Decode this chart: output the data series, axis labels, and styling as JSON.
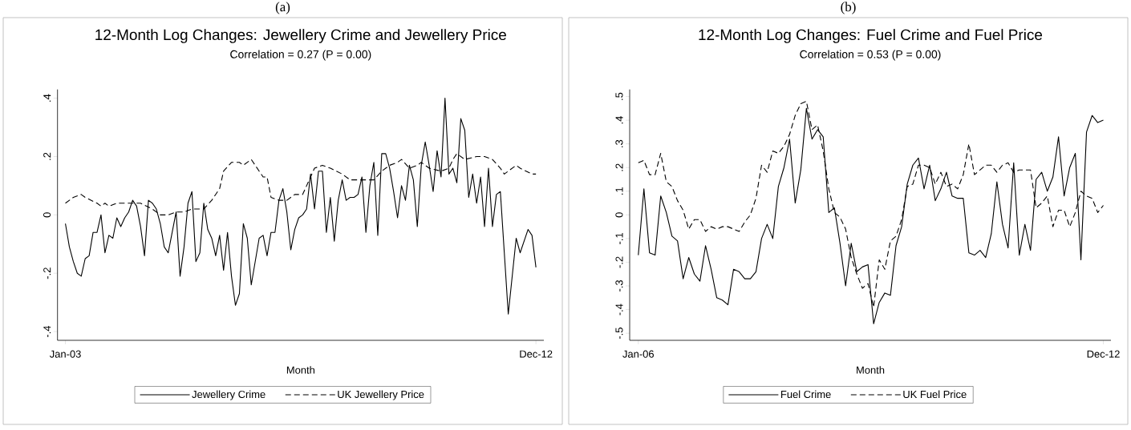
{
  "chart_data": [
    {
      "type": "line",
      "title": "12-Month Log Changes: Jewellery Crime and Jewellery Price",
      "subtitle": "Correlation = 0.27 (P = 0.00)",
      "xlabel": "Month",
      "annotations": [
        "(a)"
      ],
      "legend": "bottom",
      "xlim": [
        "2002-11",
        "2013-02"
      ],
      "ylim": [
        -0.43,
        0.43
      ],
      "xticks": [
        {
          "value": "2003-01",
          "label": "Jan-03"
        },
        {
          "value": "2012-12",
          "label": "Dec-12"
        }
      ],
      "yticks": [
        {
          "value": -0.4,
          "label": "-.4"
        },
        {
          "value": -0.2,
          "label": "-.2"
        },
        0,
        {
          "value": 0.2,
          "label": ".2"
        },
        {
          "value": 0.4,
          "label": ".4"
        }
      ],
      "x": [
        "2003-01",
        "2003-02",
        "2003-03",
        "2003-04",
        "2003-05",
        "2003-06",
        "2003-07",
        "2003-08",
        "2003-09",
        "2003-10",
        "2003-11",
        "2003-12",
        "2004-01",
        "2004-02",
        "2004-03",
        "2004-04",
        "2004-05",
        "2004-06",
        "2004-07",
        "2004-08",
        "2004-09",
        "2004-10",
        "2004-11",
        "2004-12",
        "2005-01",
        "2005-02",
        "2005-03",
        "2005-04",
        "2005-05",
        "2005-06",
        "2005-07",
        "2005-08",
        "2005-09",
        "2005-10",
        "2005-11",
        "2005-12",
        "2006-01",
        "2006-02",
        "2006-03",
        "2006-04",
        "2006-05",
        "2006-06",
        "2006-07",
        "2006-08",
        "2006-09",
        "2006-10",
        "2006-11",
        "2006-12",
        "2007-01",
        "2007-02",
        "2007-03",
        "2007-04",
        "2007-05",
        "2007-06",
        "2007-07",
        "2007-08",
        "2007-09",
        "2007-10",
        "2007-11",
        "2007-12",
        "2008-01",
        "2008-02",
        "2008-03",
        "2008-04",
        "2008-05",
        "2008-06",
        "2008-07",
        "2008-08",
        "2008-09",
        "2008-10",
        "2008-11",
        "2008-12",
        "2009-01",
        "2009-02",
        "2009-03",
        "2009-04",
        "2009-05",
        "2009-06",
        "2009-07",
        "2009-08",
        "2009-09",
        "2009-10",
        "2009-11",
        "2009-12",
        "2010-01",
        "2010-02",
        "2010-03",
        "2010-04",
        "2010-05",
        "2010-06",
        "2010-07",
        "2010-08",
        "2010-09",
        "2010-10",
        "2010-11",
        "2010-12",
        "2011-01",
        "2011-02",
        "2011-03",
        "2011-04",
        "2011-05",
        "2011-06",
        "2011-07",
        "2011-08",
        "2011-09",
        "2011-10",
        "2011-11",
        "2011-12",
        "2012-01",
        "2012-02",
        "2012-03",
        "2012-04",
        "2012-05",
        "2012-06",
        "2012-07",
        "2012-08",
        "2012-09",
        "2012-10",
        "2012-11",
        "2012-12"
      ],
      "series": [
        {
          "name": "Jewellery Crime",
          "color": "#000000",
          "line_style": "solid",
          "values": [
            -0.03,
            -0.11,
            -0.16,
            -0.2,
            -0.21,
            -0.15,
            -0.14,
            -0.06,
            -0.06,
            0,
            -0.13,
            -0.07,
            -0.08,
            -0.01,
            -0.04,
            -0.01,
            0.01,
            0.05,
            0.03,
            -0.04,
            -0.14,
            0.05,
            0.04,
            0.02,
            -0.03,
            -0.11,
            -0.13,
            -0.06,
            0.01,
            -0.21,
            -0.11,
            0.04,
            0.08,
            -0.16,
            -0.13,
            0.04,
            -0.05,
            -0.08,
            -0.14,
            -0.07,
            -0.19,
            -0.06,
            -0.21,
            -0.31,
            -0.27,
            -0.03,
            -0.08,
            -0.24,
            -0.16,
            -0.08,
            -0.07,
            -0.14,
            -0.06,
            -0.06,
            0.05,
            0.09,
            0.01,
            -0.12,
            -0.05,
            -0.01,
            0,
            0.02,
            0.14,
            0.02,
            0.15,
            0.15,
            -0.06,
            0.06,
            -0.09,
            0.05,
            0.12,
            0.05,
            0.06,
            0.06,
            0.07,
            0.13,
            -0.06,
            0.1,
            0.18,
            -0.07,
            0.21,
            0.21,
            0.16,
            0.08,
            -0.01,
            0.1,
            0.05,
            0.17,
            0.12,
            -0.04,
            0.17,
            0.25,
            0.17,
            0.08,
            0.22,
            0.13,
            0.4,
            0.14,
            0.16,
            0.11,
            0.33,
            0.29,
            0.06,
            0.14,
            0.04,
            0.13,
            -0.04,
            0.16,
            -0.04,
            0.07,
            0.08,
            -0.13,
            -0.34,
            -0.21,
            -0.08,
            -0.13,
            -0.09,
            -0.05,
            -0.07,
            -0.18
          ]
        },
        {
          "name": "UK Jewellery Price",
          "color": "#000000",
          "line_style": "dashed",
          "x": [
            "2003-01",
            "2003-03",
            "2003-05",
            "2003-06",
            "2003-09",
            "2003-10",
            "2003-11",
            "2003-12",
            "2004-02",
            "2004-05",
            "2004-08",
            "2004-11",
            "2005-01",
            "2005-03",
            "2005-05",
            "2005-07",
            "2005-09",
            "2005-12",
            "2006-02",
            "2006-04",
            "2006-05",
            "2006-07",
            "2006-09",
            "2006-10",
            "2006-12",
            "2007-01",
            "2007-03",
            "2007-04",
            "2007-05",
            "2007-07",
            "2007-09",
            "2007-11",
            "2008-01",
            "2008-03",
            "2008-04",
            "2008-06",
            "2008-08",
            "2008-11",
            "2009-01",
            "2009-04",
            "2009-07",
            "2009-09",
            "2009-11",
            "2010-01",
            "2010-02",
            "2010-04",
            "2010-06",
            "2010-07",
            "2010-09",
            "2010-12",
            "2011-02",
            "2011-03",
            "2011-04",
            "2011-06",
            "2011-09",
            "2011-11",
            "2012-01",
            "2012-03",
            "2012-04",
            "2012-07",
            "2012-08",
            "2012-11",
            "2012-12"
          ],
          "values": [
            0.04,
            0.06,
            0.07,
            0.06,
            0.04,
            0.03,
            0.04,
            0.03,
            0.04,
            0.04,
            0.04,
            0.02,
            0,
            0,
            0.01,
            0.01,
            0.02,
            0.02,
            0.05,
            0.09,
            0.15,
            0.18,
            0.18,
            0.17,
            0.19,
            0.17,
            0.13,
            0.13,
            0.06,
            0.05,
            0.05,
            0.07,
            0.07,
            0.13,
            0.16,
            0.17,
            0.16,
            0.14,
            0.12,
            0.12,
            0.12,
            0.15,
            0.17,
            0.18,
            0.19,
            0.16,
            0.17,
            0.18,
            0.16,
            0.15,
            0.16,
            0.19,
            0.21,
            0.19,
            0.2,
            0.2,
            0.19,
            0.16,
            0.14,
            0.17,
            0.16,
            0.14,
            0.14
          ]
        }
      ]
    },
    {
      "type": "line",
      "title": "12-Month Log Changes: Fuel Crime and Fuel Price",
      "subtitle": "Correlation = 0.53 (P = 0.00)",
      "xlabel": "Month",
      "annotations": [
        "(b)"
      ],
      "legend": "bottom",
      "xlim": [
        "2005-11-15",
        "2013-01-12"
      ],
      "ylim": [
        -0.53,
        0.53
      ],
      "xticks": [
        {
          "value": "2006-01",
          "label": "Jan-06"
        },
        {
          "value": "2012-12",
          "label": "Dec-12"
        }
      ],
      "yticks": [
        {
          "value": -0.5,
          "label": "-.5"
        },
        {
          "value": -0.4,
          "label": "-.4"
        },
        {
          "value": -0.3,
          "label": "-.3"
        },
        {
          "value": -0.2,
          "label": "-.2"
        },
        {
          "value": -0.1,
          "label": "-.1"
        },
        0,
        {
          "value": 0.1,
          "label": ".1"
        },
        {
          "value": 0.2,
          "label": ".2"
        },
        {
          "value": 0.3,
          "label": ".3"
        },
        {
          "value": 0.4,
          "label": ".4"
        },
        {
          "value": 0.5,
          "label": ".5"
        }
      ],
      "x": [
        "2006-01",
        "2006-02",
        "2006-03",
        "2006-04",
        "2006-05",
        "2006-06",
        "2006-07",
        "2006-08",
        "2006-09",
        "2006-10",
        "2006-11",
        "2006-12",
        "2007-01",
        "2007-02",
        "2007-03",
        "2007-04",
        "2007-05",
        "2007-06",
        "2007-07",
        "2007-08",
        "2007-09",
        "2007-10",
        "2007-11",
        "2007-12",
        "2008-01",
        "2008-02",
        "2008-03",
        "2008-04",
        "2008-05",
        "2008-06",
        "2008-07",
        "2008-08",
        "2008-09",
        "2008-10",
        "2008-11",
        "2008-12",
        "2009-01",
        "2009-02",
        "2009-03",
        "2009-04",
        "2009-05",
        "2009-06",
        "2009-07",
        "2009-08",
        "2009-09",
        "2009-10",
        "2009-11",
        "2009-12",
        "2010-01",
        "2010-02",
        "2010-03",
        "2010-04",
        "2010-05",
        "2010-06",
        "2010-07",
        "2010-08",
        "2010-09",
        "2010-10",
        "2010-11",
        "2010-12",
        "2011-01",
        "2011-02",
        "2011-03",
        "2011-04",
        "2011-05",
        "2011-06",
        "2011-07",
        "2011-08",
        "2011-09",
        "2011-10",
        "2011-11",
        "2011-12",
        "2012-01",
        "2012-02",
        "2012-03",
        "2012-04",
        "2012-05",
        "2012-06",
        "2012-07",
        "2012-08",
        "2012-09",
        "2012-10",
        "2012-11",
        "2012-12"
      ],
      "series": [
        {
          "name": "Fuel Crime",
          "color": "#000000",
          "line_style": "solid",
          "values": [
            -0.17,
            0.11,
            -0.16,
            -0.17,
            0.08,
            0.01,
            -0.09,
            -0.11,
            -0.27,
            -0.18,
            -0.25,
            -0.28,
            -0.13,
            -0.23,
            -0.35,
            -0.36,
            -0.38,
            -0.23,
            -0.24,
            -0.27,
            -0.27,
            -0.24,
            -0.1,
            -0.04,
            -0.1,
            0.12,
            0.2,
            0.32,
            0.05,
            0.19,
            0.45,
            0.32,
            0.36,
            0.33,
            0.01,
            0.03,
            -0.12,
            -0.3,
            -0.12,
            -0.24,
            -0.22,
            -0.21,
            -0.46,
            -0.37,
            -0.33,
            -0.34,
            -0.13,
            -0.05,
            0.13,
            0.21,
            0.24,
            0.11,
            0.21,
            0.06,
            0.11,
            0.18,
            0.08,
            0.07,
            0.07,
            -0.16,
            -0.17,
            -0.15,
            -0.18,
            -0.08,
            0.14,
            -0.04,
            -0.14,
            0.22,
            -0.17,
            -0.04,
            -0.15,
            0.15,
            0.18,
            0.1,
            0.16,
            0.33,
            0.08,
            0.2,
            0.26,
            -0.19,
            0.35,
            0.42,
            0.39,
            0.4
          ]
        },
        {
          "name": "UK Fuel Price",
          "color": "#000000",
          "line_style": "dashed",
          "values": [
            0.22,
            0.23,
            0.17,
            0.17,
            0.26,
            0.14,
            0.12,
            0.06,
            0.02,
            -0.06,
            -0.02,
            -0.02,
            -0.07,
            -0.05,
            -0.06,
            -0.05,
            -0.05,
            -0.06,
            -0.07,
            -0.03,
            0,
            0.07,
            0.21,
            0.18,
            0.27,
            0.26,
            0.29,
            0.34,
            0.42,
            0.47,
            0.48,
            0.36,
            0.38,
            0.27,
            0.11,
            0.01,
            -0.01,
            -0.06,
            -0.18,
            -0.25,
            -0.31,
            -0.29,
            -0.39,
            -0.19,
            -0.23,
            -0.11,
            -0.09,
            -0.02,
            0.12,
            0.13,
            0.21,
            0.21,
            0.2,
            0.13,
            0.18,
            0.12,
            0.13,
            0.11,
            0.17,
            0.3,
            0.17,
            0.19,
            0.21,
            0.21,
            0.18,
            0.21,
            0.22,
            0.18,
            0.19,
            0.19,
            0.19,
            0.03,
            0.05,
            0.08,
            -0.05,
            0.02,
            0.02,
            -0.05,
            0.01,
            0.1,
            0.08,
            0.07,
            0.01,
            0.04
          ]
        }
      ]
    }
  ]
}
